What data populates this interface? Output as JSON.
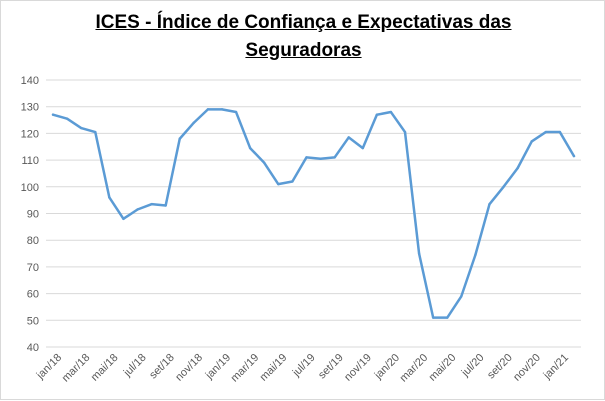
{
  "chart_data": {
    "type": "line",
    "title_line1": "ICES - Índice de Confiança e Expectativas das",
    "title_line2": "Seguradoras",
    "xlabel": "",
    "ylabel": "",
    "ylim": [
      40,
      140
    ],
    "yticks": [
      40,
      50,
      60,
      70,
      80,
      90,
      100,
      110,
      120,
      130,
      140
    ],
    "grid": true,
    "legend": "none",
    "line_color": "#5b9bd5",
    "x": [
      "jan/18",
      "fev/18",
      "mar/18",
      "abr/18",
      "mai/18",
      "jun/18",
      "jul/18",
      "ago/18",
      "set/18",
      "out/18",
      "nov/18",
      "dez/18",
      "jan/19",
      "fev/19",
      "mar/19",
      "abr/19",
      "mai/19",
      "jun/19",
      "jul/19",
      "ago/19",
      "set/19",
      "out/19",
      "nov/19",
      "dez/19",
      "jan/20",
      "fev/20",
      "mar/20",
      "abr/20",
      "mai/20",
      "jun/20",
      "jul/20",
      "ago/20",
      "set/20",
      "out/20",
      "nov/20",
      "dez/20",
      "jan/21",
      "fev/21"
    ],
    "x_tick_labels": [
      "jan/18",
      "mar/18",
      "mai/18",
      "jul/18",
      "set/18",
      "nov/18",
      "jan/19",
      "mar/19",
      "mai/19",
      "jul/19",
      "set/19",
      "nov/19",
      "jan/20",
      "mar/20",
      "mai/20",
      "jul/20",
      "set/20",
      "nov/20",
      "jan/21"
    ],
    "series": [
      {
        "values": [
          127,
          125.5,
          122,
          120.5,
          96,
          88,
          91.5,
          93.5,
          93,
          118,
          124,
          129,
          129,
          128,
          114.5,
          109,
          101,
          102,
          111,
          110.5,
          111,
          118.5,
          114.5,
          127,
          128,
          120.5,
          75,
          51,
          51,
          59,
          74.5,
          93.5,
          100,
          107,
          117,
          120.5,
          120.5,
          111.5
        ]
      }
    ]
  }
}
